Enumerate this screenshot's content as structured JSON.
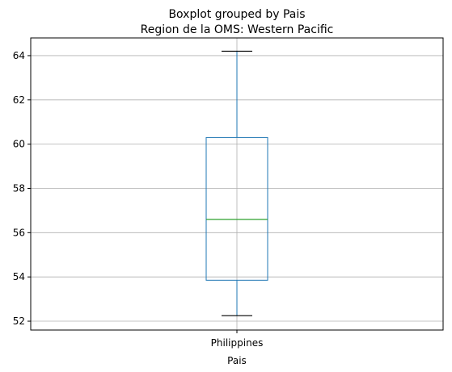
{
  "chart_data": {
    "type": "boxplot",
    "suptitle": "Boxplot grouped by Pais",
    "title": "Region de la OMS: Western Pacific",
    "xlabel": "Pais",
    "ylabel": "",
    "categories": [
      "Philippines"
    ],
    "boxes": [
      {
        "category": "Philippines",
        "whisker_low": 52.25,
        "q1": 53.85,
        "median": 56.6,
        "q3": 60.3,
        "whisker_high": 64.2
      }
    ],
    "ylim": [
      51.6,
      64.8
    ],
    "yticks": [
      52,
      54,
      56,
      58,
      60,
      62,
      64
    ],
    "grid": true,
    "colors": {
      "box": "#1f77b4",
      "median": "#2ca02c",
      "whisker_cap": "#000000",
      "grid": "#b0b0b0",
      "axes": "#000000"
    }
  }
}
